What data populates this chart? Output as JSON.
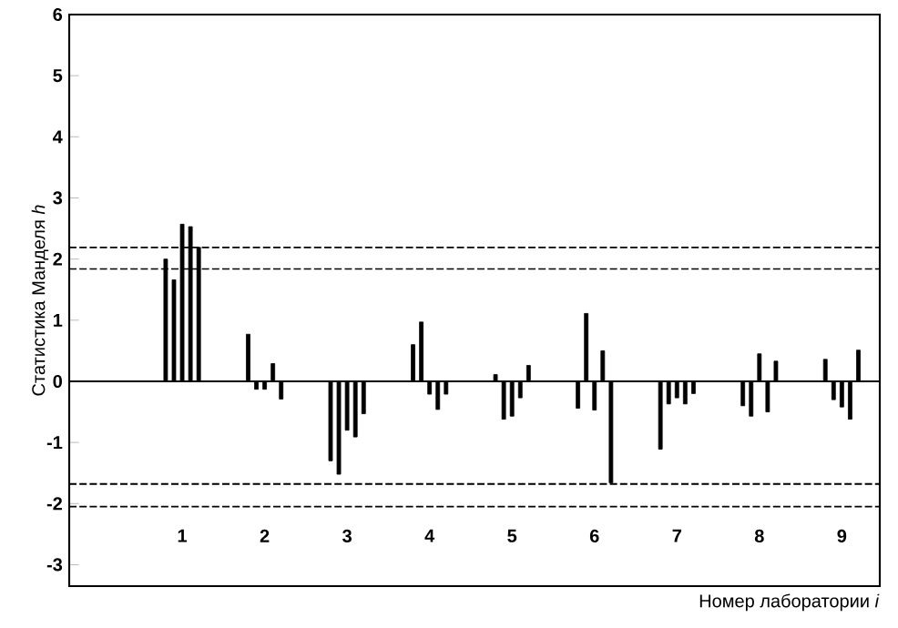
{
  "chart_data": {
    "type": "bar",
    "xlabel": "Номер лаборатории *i*",
    "ylabel": "Статистика Манделя *h*",
    "categories": [
      "1",
      "2",
      "3",
      "4",
      "5",
      "6",
      "7",
      "8",
      "9"
    ],
    "series": [
      {
        "color": "#000000",
        "values": [
          2.0,
          0.77,
          -1.3,
          0.6,
          0.11,
          -0.44,
          -1.11,
          -0.4,
          0.36
        ]
      },
      {
        "color": "#000000",
        "values": [
          1.66,
          -0.13,
          -1.52,
          0.97,
          -0.62,
          1.11,
          -0.37,
          -0.57,
          -0.3
        ]
      },
      {
        "color": "#000000",
        "values": [
          2.57,
          -0.13,
          -0.8,
          -0.21,
          -0.57,
          -0.47,
          -0.27,
          0.45,
          -0.42
        ]
      },
      {
        "color": "#000000",
        "values": [
          2.53,
          0.29,
          -0.91,
          -0.46,
          -0.27,
          0.5,
          -0.37,
          -0.5,
          -0.62
        ]
      },
      {
        "color": "#000000",
        "values": [
          2.19,
          -0.29,
          -0.53,
          -0.21,
          0.26,
          -1.66,
          -0.2,
          0.33,
          0.51
        ]
      }
    ],
    "ylim": [
      -3.35,
      6
    ],
    "yticks": [
      -3,
      -2,
      -1,
      0,
      1,
      2,
      3,
      4,
      5,
      6
    ],
    "ref_lines": [
      {
        "axis": "y",
        "value": 0,
        "color": "#000000",
        "line_style": "solid"
      },
      {
        "axis": "y",
        "value": 2.19,
        "color": "#000000",
        "line_style": "dashed"
      },
      {
        "axis": "y",
        "value": 1.84,
        "color": "#000000",
        "line_style": "dashed"
      },
      {
        "axis": "y",
        "value": -1.68,
        "color": "#000000",
        "line_style": "dashed"
      },
      {
        "axis": "y",
        "value": -2.05,
        "color": "#000000",
        "line_style": "dashed"
      }
    ]
  }
}
